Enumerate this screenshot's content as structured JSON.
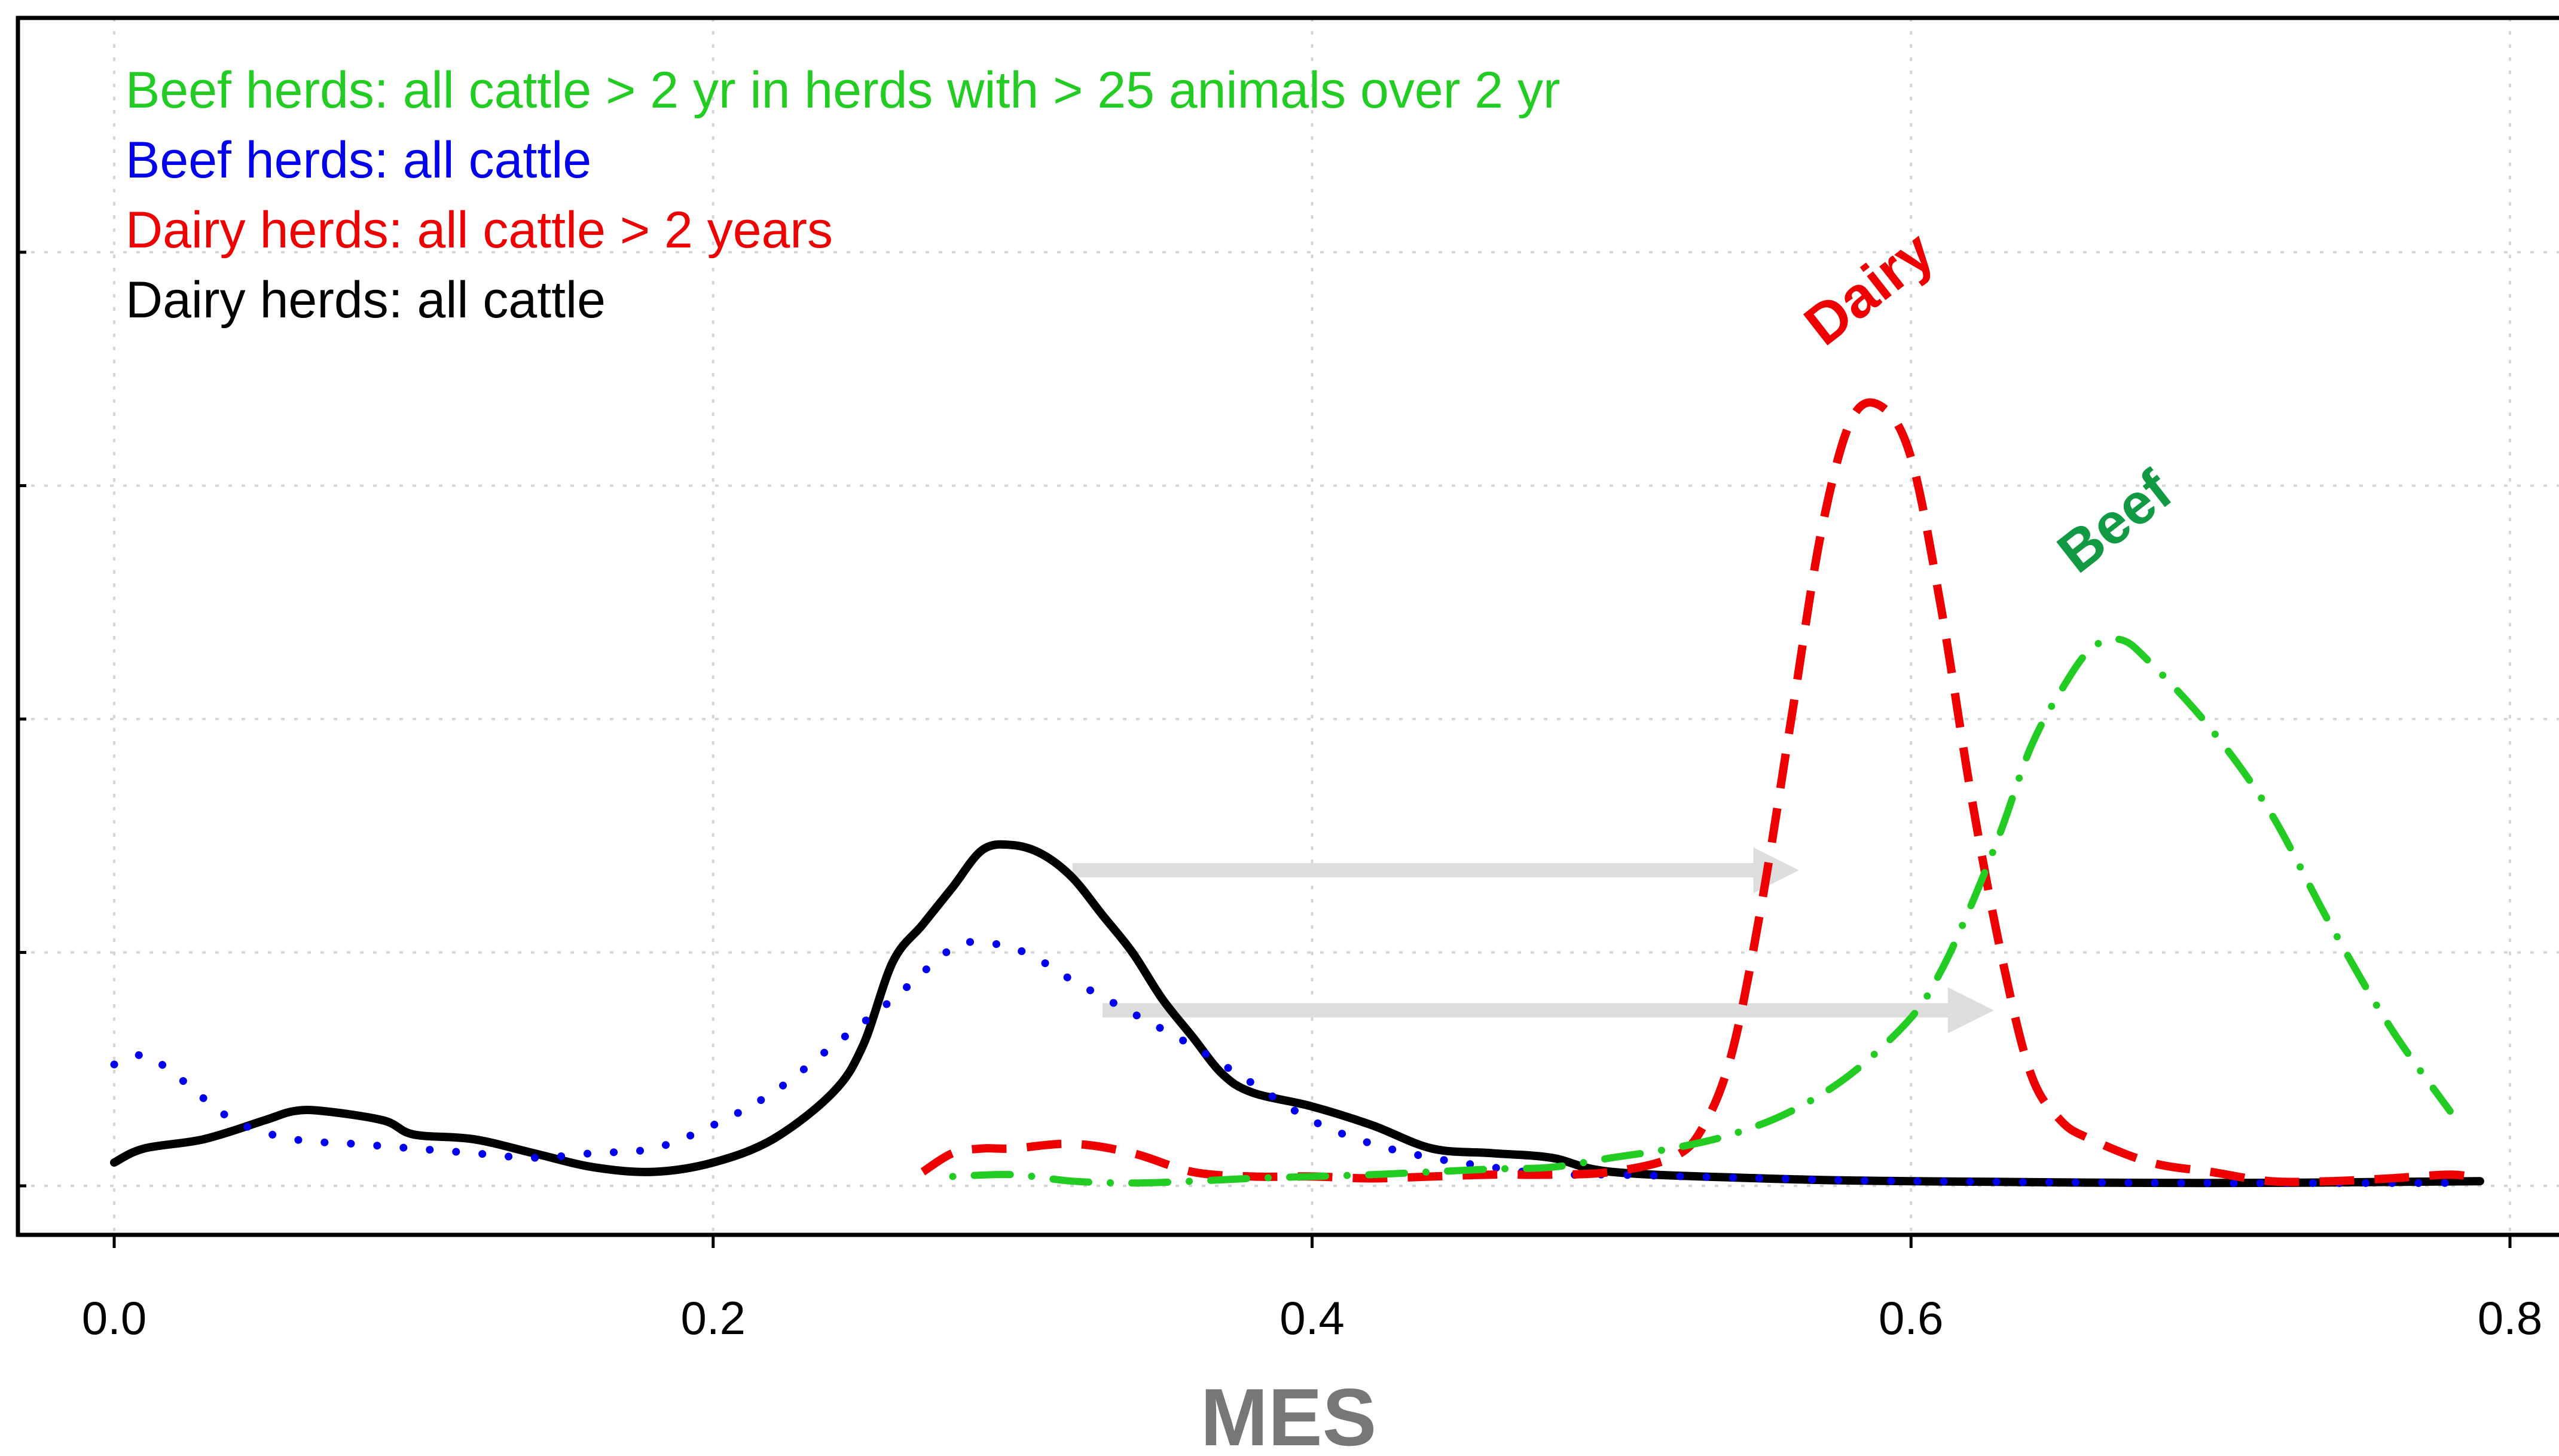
{
  "chart_data": {
    "type": "line",
    "title": "",
    "xlabel": "MES",
    "ylabel": "",
    "xlim": [
      -0.03,
      0.8
    ],
    "ylim": [
      -0.004,
      0.105
    ],
    "x_ticks": [
      0.0,
      0.2,
      0.4,
      0.6,
      0.8
    ],
    "x_tick_labels": [
      "0.0",
      "0.2",
      "0.4",
      "0.6",
      "0.8"
    ],
    "y_gridlines": [
      0,
      0.025,
      0.05,
      0.075,
      0.1
    ],
    "grid": true,
    "legend": {
      "placement": "top-left",
      "entries": [
        {
          "label": "Beef herds: all cattle > 2 yr in herds with > 25 animals over 2 yr",
          "color": "#22cc22"
        },
        {
          "label": "Beef herds: all cattle",
          "color": "#0000ee"
        },
        {
          "label": "Dairy herds: all cattle > 2 years",
          "color": "#ee0000"
        },
        {
          "label": "Dairy herds: all cattle",
          "color": "#000000"
        }
      ]
    },
    "series": [
      {
        "key": "dairy_all",
        "color": "#000000",
        "style": "solid",
        "points": [
          [
            0.0,
            0.0025
          ],
          [
            0.01,
            0.004
          ],
          [
            0.03,
            0.005
          ],
          [
            0.05,
            0.007
          ],
          [
            0.06,
            0.008
          ],
          [
            0.07,
            0.008
          ],
          [
            0.09,
            0.007
          ],
          [
            0.1,
            0.0055
          ],
          [
            0.12,
            0.005
          ],
          [
            0.14,
            0.0035
          ],
          [
            0.16,
            0.002
          ],
          [
            0.18,
            0.0015
          ],
          [
            0.2,
            0.0025
          ],
          [
            0.22,
            0.005
          ],
          [
            0.24,
            0.01
          ],
          [
            0.25,
            0.015
          ],
          [
            0.26,
            0.024
          ],
          [
            0.27,
            0.028
          ],
          [
            0.28,
            0.032
          ],
          [
            0.29,
            0.036
          ],
          [
            0.3,
            0.0365
          ],
          [
            0.31,
            0.0355
          ],
          [
            0.32,
            0.033
          ],
          [
            0.33,
            0.029
          ],
          [
            0.34,
            0.025
          ],
          [
            0.35,
            0.02
          ],
          [
            0.36,
            0.016
          ],
          [
            0.37,
            0.012
          ],
          [
            0.38,
            0.01
          ],
          [
            0.4,
            0.0085
          ],
          [
            0.42,
            0.0065
          ],
          [
            0.44,
            0.004
          ],
          [
            0.46,
            0.0035
          ],
          [
            0.48,
            0.003
          ],
          [
            0.5,
            0.0015
          ],
          [
            0.55,
            0.0008
          ],
          [
            0.6,
            0.0005
          ],
          [
            0.7,
            0.0003
          ],
          [
            0.79,
            0.0005
          ]
        ]
      },
      {
        "key": "beef_all",
        "color": "#0000ee",
        "style": "dotted",
        "points": [
          [
            0.0,
            0.013
          ],
          [
            0.01,
            0.014
          ],
          [
            0.02,
            0.012
          ],
          [
            0.04,
            0.007
          ],
          [
            0.06,
            0.005
          ],
          [
            0.08,
            0.0045
          ],
          [
            0.1,
            0.004
          ],
          [
            0.12,
            0.0035
          ],
          [
            0.14,
            0.003
          ],
          [
            0.16,
            0.0035
          ],
          [
            0.18,
            0.004
          ],
          [
            0.2,
            0.0065
          ],
          [
            0.22,
            0.01
          ],
          [
            0.24,
            0.015
          ],
          [
            0.26,
            0.02
          ],
          [
            0.28,
            0.0255
          ],
          [
            0.29,
            0.026
          ],
          [
            0.3,
            0.0255
          ],
          [
            0.31,
            0.024
          ],
          [
            0.32,
            0.022
          ],
          [
            0.34,
            0.0185
          ],
          [
            0.36,
            0.015
          ],
          [
            0.38,
            0.011
          ],
          [
            0.4,
            0.007
          ],
          [
            0.42,
            0.0045
          ],
          [
            0.44,
            0.003
          ],
          [
            0.46,
            0.002
          ],
          [
            0.48,
            0.0012
          ],
          [
            0.5,
            0.0012
          ],
          [
            0.55,
            0.0008
          ],
          [
            0.6,
            0.0005
          ],
          [
            0.7,
            0.0003
          ],
          [
            0.78,
            0.0003
          ]
        ]
      },
      {
        "key": "dairy_gt2",
        "color": "#ee0000",
        "style": "dashed",
        "points": [
          [
            0.27,
            0.0015
          ],
          [
            0.28,
            0.0035
          ],
          [
            0.29,
            0.004
          ],
          [
            0.3,
            0.004
          ],
          [
            0.32,
            0.0045
          ],
          [
            0.34,
            0.0035
          ],
          [
            0.36,
            0.0015
          ],
          [
            0.38,
            0.001
          ],
          [
            0.4,
            0.001
          ],
          [
            0.42,
            0.0008
          ],
          [
            0.44,
            0.001
          ],
          [
            0.46,
            0.0012
          ],
          [
            0.48,
            0.0012
          ],
          [
            0.5,
            0.0015
          ],
          [
            0.52,
            0.003
          ],
          [
            0.53,
            0.006
          ],
          [
            0.54,
            0.014
          ],
          [
            0.55,
            0.03
          ],
          [
            0.56,
            0.05
          ],
          [
            0.57,
            0.07
          ],
          [
            0.58,
            0.082
          ],
          [
            0.59,
            0.0835
          ],
          [
            0.6,
            0.078
          ],
          [
            0.61,
            0.062
          ],
          [
            0.62,
            0.042
          ],
          [
            0.63,
            0.025
          ],
          [
            0.64,
            0.012
          ],
          [
            0.65,
            0.007
          ],
          [
            0.66,
            0.005
          ],
          [
            0.68,
            0.0025
          ],
          [
            0.7,
            0.0015
          ],
          [
            0.72,
            0.0005
          ],
          [
            0.74,
            0.0005
          ],
          [
            0.76,
            0.0008
          ],
          [
            0.78,
            0.0012
          ],
          [
            0.79,
            0.0008
          ]
        ]
      },
      {
        "key": "beef_gt2",
        "color": "#22cc22",
        "style": "dotdash",
        "points": [
          [
            0.28,
            0.001
          ],
          [
            0.3,
            0.0012
          ],
          [
            0.32,
            0.0005
          ],
          [
            0.34,
            0.0003
          ],
          [
            0.36,
            0.0005
          ],
          [
            0.38,
            0.0008
          ],
          [
            0.4,
            0.001
          ],
          [
            0.42,
            0.0012
          ],
          [
            0.44,
            0.0015
          ],
          [
            0.46,
            0.0018
          ],
          [
            0.48,
            0.002
          ],
          [
            0.5,
            0.003
          ],
          [
            0.52,
            0.004
          ],
          [
            0.54,
            0.0055
          ],
          [
            0.56,
            0.008
          ],
          [
            0.58,
            0.012
          ],
          [
            0.6,
            0.018
          ],
          [
            0.61,
            0.023
          ],
          [
            0.62,
            0.03
          ],
          [
            0.63,
            0.038
          ],
          [
            0.64,
            0.047
          ],
          [
            0.65,
            0.053
          ],
          [
            0.66,
            0.0575
          ],
          [
            0.67,
            0.0585
          ],
          [
            0.68,
            0.056
          ],
          [
            0.7,
            0.049
          ],
          [
            0.72,
            0.04
          ],
          [
            0.74,
            0.028
          ],
          [
            0.76,
            0.017
          ],
          [
            0.78,
            0.008
          ]
        ]
      }
    ],
    "annotations": [
      {
        "text": "Dairy",
        "color": "#ee0000",
        "x": 0.59,
        "y": 0.0945,
        "rotation": -38
      },
      {
        "text": "Beef",
        "color": "#119944",
        "x": 0.672,
        "y": 0.0695,
        "rotation": -38
      }
    ],
    "arrows": [
      {
        "from": [
          0.32,
          0.0338
        ],
        "to": [
          0.555,
          0.0338
        ],
        "color": "#dddddd"
      },
      {
        "from": [
          0.33,
          0.0188
        ],
        "to": [
          0.62,
          0.0188
        ],
        "color": "#dddddd"
      }
    ]
  }
}
